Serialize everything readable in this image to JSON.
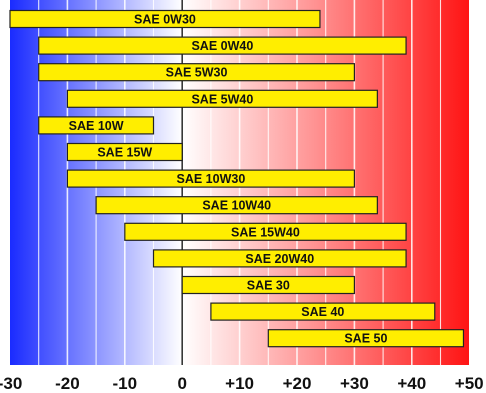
{
  "chart_data": {
    "type": "bar",
    "orientation": "horizontal-range",
    "title": "",
    "xlabel": "",
    "ylabel": "",
    "xlim": [
      -30,
      50
    ],
    "grid": true,
    "legend": "none",
    "background": "temperature gradient: blue (cold) to white at 0 to red (hot)",
    "colors": {
      "bar_fill": "#ffee00",
      "bar_stroke": "#222222",
      "cold": "#1a2bff",
      "neutral": "#ffffff",
      "hot": "#ff1414"
    },
    "x_ticks": [
      -30,
      -20,
      -10,
      0,
      10,
      20,
      30,
      40,
      50
    ],
    "x_tick_labels": [
      "-30",
      "-20",
      "-10",
      "0",
      "+10",
      "+20",
      "+30",
      "+40",
      "+50"
    ],
    "categories": [
      "SAE 0W30",
      "SAE 0W40",
      "SAE 5W30",
      "SAE 5W40",
      "SAE 10W",
      "SAE 15W",
      "SAE 10W30",
      "SAE 10W40",
      "SAE 15W40",
      "SAE 20W40",
      "SAE 30",
      "SAE 40",
      "SAE 50"
    ],
    "ranges": [
      [
        -30,
        24
      ],
      [
        -25,
        39
      ],
      [
        -25,
        30
      ],
      [
        -20,
        34
      ],
      [
        -25,
        -5
      ],
      [
        -20,
        0
      ],
      [
        -20,
        30
      ],
      [
        -15,
        34
      ],
      [
        -10,
        39
      ],
      [
        -5,
        39
      ],
      [
        0,
        30
      ],
      [
        5,
        44
      ],
      [
        15,
        49
      ]
    ]
  }
}
